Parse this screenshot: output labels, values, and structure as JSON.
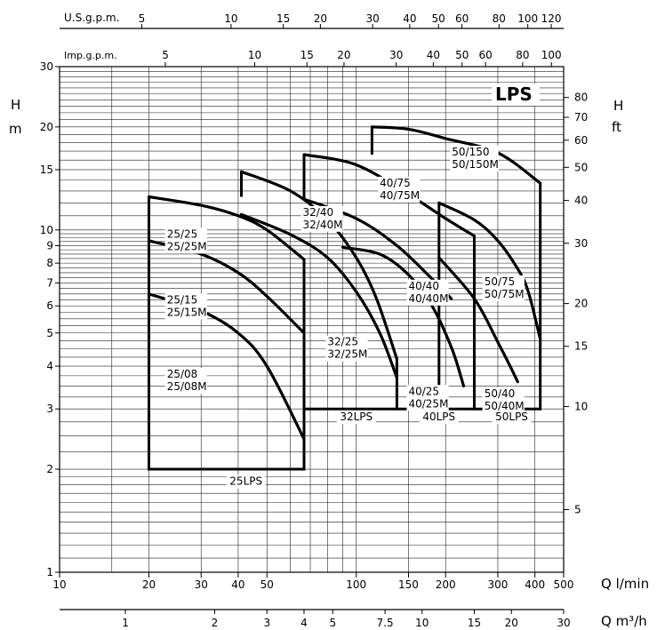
{
  "chart_data": {
    "type": "line",
    "title": "LPS",
    "x_scale": "log",
    "y_scale": "log",
    "xlim": [
      10,
      500
    ],
    "ylim": [
      1,
      30
    ],
    "axes": {
      "left_title": [
        "H",
        "m"
      ],
      "right_title": [
        "H",
        "ft"
      ],
      "bottom_title": "Q l/min",
      "bottom2_title": "Q m³/h",
      "top_title": "U.S.g.p.m.",
      "top2_title": "Imp.g.p.m."
    },
    "y_ticks_m": [
      {
        "v": 1,
        "label": "1"
      },
      {
        "v": 2,
        "label": "2"
      },
      {
        "v": 3,
        "label": "3"
      },
      {
        "v": 4,
        "label": "4"
      },
      {
        "v": 5,
        "label": "5"
      },
      {
        "v": 6,
        "label": "6"
      },
      {
        "v": 7,
        "label": "7"
      },
      {
        "v": 8,
        "label": "8"
      },
      {
        "v": 9,
        "label": "9"
      },
      {
        "v": 10,
        "label": "10"
      },
      {
        "v": 15,
        "label": "15"
      },
      {
        "v": 20,
        "label": "20"
      },
      {
        "v": 30,
        "label": "30"
      }
    ],
    "y_ticks_ft": [
      {
        "v": 5,
        "label": "5"
      },
      {
        "v": 10,
        "label": "10"
      },
      {
        "v": 15,
        "label": "15"
      },
      {
        "v": 20,
        "label": "20"
      },
      {
        "v": 30,
        "label": "30"
      },
      {
        "v": 40,
        "label": "40"
      },
      {
        "v": 50,
        "label": "50"
      },
      {
        "v": 60,
        "label": "60"
      },
      {
        "v": 70,
        "label": "70"
      },
      {
        "v": 80,
        "label": "80"
      }
    ],
    "x_ticks_lmin": [
      {
        "v": 10,
        "label": "10"
      },
      {
        "v": 20,
        "label": "20"
      },
      {
        "v": 30,
        "label": "30"
      },
      {
        "v": 40,
        "label": "40"
      },
      {
        "v": 50,
        "label": "50"
      },
      {
        "v": 100,
        "label": "100"
      },
      {
        "v": 150,
        "label": "150"
      },
      {
        "v": 200,
        "label": "200"
      },
      {
        "v": 300,
        "label": "300"
      },
      {
        "v": 400,
        "label": "400"
      },
      {
        "v": 500,
        "label": "500"
      }
    ],
    "x_ticks_m3h": [
      {
        "v": 1,
        "label": "1"
      },
      {
        "v": 2,
        "label": "2"
      },
      {
        "v": 3,
        "label": "3"
      },
      {
        "v": 4,
        "label": "4"
      },
      {
        "v": 5,
        "label": "5"
      },
      {
        "v": 7.5,
        "label": "7.5"
      },
      {
        "v": 10,
        "label": "10"
      },
      {
        "v": 15,
        "label": "15"
      },
      {
        "v": 20,
        "label": "20"
      },
      {
        "v": 30,
        "label": "30"
      }
    ],
    "x_ticks_usgpm": [
      {
        "v": 5,
        "label": "5"
      },
      {
        "v": 10,
        "label": "10"
      },
      {
        "v": 15,
        "label": "15"
      },
      {
        "v": 20,
        "label": "20"
      },
      {
        "v": 30,
        "label": "30"
      },
      {
        "v": 40,
        "label": "40"
      },
      {
        "v": 50,
        "label": "50"
      },
      {
        "v": 60,
        "label": "60"
      },
      {
        "v": 80,
        "label": "80"
      },
      {
        "v": 100,
        "label": "100"
      },
      {
        "v": 120,
        "label": "120"
      }
    ],
    "x_ticks_impgpm": [
      {
        "v": 5,
        "label": "5"
      },
      {
        "v": 10,
        "label": "10"
      },
      {
        "v": 15,
        "label": "15"
      },
      {
        "v": 20,
        "label": "20"
      },
      {
        "v": 30,
        "label": "30"
      },
      {
        "v": 40,
        "label": "40"
      },
      {
        "v": 50,
        "label": "50"
      },
      {
        "v": 60,
        "label": "60"
      },
      {
        "v": 80,
        "label": "80"
      },
      {
        "v": 100,
        "label": "100"
      }
    ],
    "grid": true,
    "series": [
      {
        "name": "25/25 25/25M",
        "label": [
          "25/25",
          "25/25M"
        ],
        "label_at": [
          23,
          9.5
        ],
        "x": [
          20,
          30,
          40,
          50,
          66.7
        ],
        "y": [
          12.5,
          11.8,
          11.0,
          10.0,
          8.2
        ]
      },
      {
        "name": "25/15 25/15M",
        "label": [
          "25/15",
          "25/15M"
        ],
        "label_at": [
          23,
          6.1
        ],
        "x": [
          20,
          30,
          40,
          50,
          66.7
        ],
        "y": [
          9.3,
          8.5,
          7.5,
          6.4,
          5.0
        ]
      },
      {
        "name": "25/08 25/08M",
        "label": [
          "25/08",
          "25/08M"
        ],
        "label_at": [
          23,
          3.7
        ],
        "x": [
          20,
          30,
          40,
          50,
          66.7
        ],
        "y": [
          6.5,
          5.8,
          5.0,
          4.0,
          2.45
        ]
      },
      {
        "name": "32/40 32/40M",
        "label": [
          "32/40",
          "32/40M"
        ],
        "label_at": [
          66,
          11.0
        ],
        "x": [
          41,
          60,
          80,
          100,
          117,
          137
        ],
        "y": [
          14.8,
          13.0,
          10.7,
          8.3,
          6.3,
          4.2
        ]
      },
      {
        "name": "32/25 32/25M",
        "label": [
          "32/25",
          "32/25M"
        ],
        "label_at": [
          80,
          4.6
        ],
        "x": [
          41,
          60,
          80,
          100,
          120,
          137
        ],
        "y": [
          11.1,
          9.7,
          8.3,
          6.6,
          5.0,
          3.7
        ]
      },
      {
        "name": "40/75 40/75M",
        "label": [
          "40/75",
          "40/75M"
        ],
        "label_at": [
          120,
          13.4
        ],
        "x": [
          66.7,
          100,
          150,
          200,
          250
        ],
        "y": [
          16.6,
          15.5,
          12.7,
          10.8,
          9.6
        ]
      },
      {
        "name": "40/40 40/40M",
        "label": [
          "40/40",
          "40/40M"
        ],
        "label_at": [
          150,
          6.7
        ],
        "x": [
          66.7,
          100,
          137,
          180,
          209
        ],
        "y": [
          12.3,
          10.8,
          9.0,
          7.2,
          6.3
        ]
      },
      {
        "name": "40/25 40/25M",
        "label": [
          "40/25",
          "40/25M"
        ],
        "label_at": [
          150,
          3.3
        ],
        "x": [
          90,
          120,
          150,
          180,
          210,
          230
        ],
        "y": [
          8.9,
          8.5,
          7.4,
          6.0,
          4.5,
          3.5
        ]
      },
      {
        "name": "50/150 50/150M",
        "label": [
          "50/150",
          "50/150M"
        ],
        "label_at": [
          210,
          16.5
        ],
        "x": [
          113,
          150,
          200,
          300,
          417
        ],
        "y": [
          20.0,
          19.7,
          18.5,
          16.8,
          13.7
        ]
      },
      {
        "name": "50/75 50/75M",
        "label": [
          "50/75",
          "50/75M"
        ],
        "label_at": [
          270,
          6.9
        ],
        "x": [
          190,
          250,
          300,
          350,
          380,
          417
        ],
        "y": [
          12.0,
          10.7,
          9.3,
          7.7,
          6.6,
          4.8
        ]
      },
      {
        "name": "50/40 50/40M",
        "label": [
          "50/40",
          "50/40M"
        ],
        "label_at": [
          270,
          3.25
        ],
        "x": [
          190,
          250,
          300,
          330,
          350
        ],
        "y": [
          8.3,
          6.3,
          4.7,
          4.0,
          3.6
        ]
      }
    ],
    "envelopes": [
      {
        "name": "25LPS",
        "label": "25LPS",
        "label_at": [
          42.5,
          1.8
        ]
      },
      {
        "name": "32LPS",
        "label": "32LPS",
        "label_at": [
          100,
          2.78
        ]
      },
      {
        "name": "40LPS",
        "label": "40LPS",
        "label_at": [
          190,
          2.78
        ]
      },
      {
        "name": "50LPS",
        "label": "50LPS",
        "label_at": [
          334,
          2.78
        ]
      }
    ]
  }
}
